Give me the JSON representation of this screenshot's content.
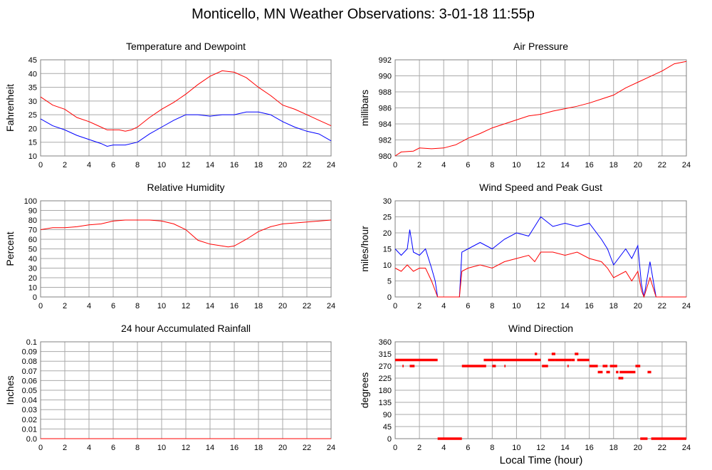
{
  "title": "Monticello, MN Weather Observations: 3-01-18 11:55p",
  "xlabel_shared": "Local Time (hour)",
  "colors": {
    "primary": "#ff0000",
    "secondary": "#0000ff",
    "grid": "#aaaaaa",
    "frame": "#808080"
  },
  "chart_data": [
    {
      "type": "line",
      "title": "Temperature and Dewpoint",
      "ylabel": "Fahrenheit",
      "xlim": [
        0,
        24
      ],
      "ylim": [
        10,
        45
      ],
      "xticks": [
        0,
        2,
        4,
        6,
        8,
        10,
        12,
        14,
        16,
        18,
        20,
        22,
        24
      ],
      "yticks": [
        10,
        15,
        20,
        25,
        30,
        35,
        40,
        45
      ],
      "ytick_labels": [
        "10",
        "15",
        "20",
        "25",
        "30",
        "35",
        "40",
        "45"
      ],
      "series": [
        {
          "color": "#ff0000",
          "x": [
            0,
            1,
            2,
            3,
            4,
            5,
            5.5,
            6,
            6.5,
            7,
            7.5,
            8,
            9,
            10,
            11,
            12,
            13,
            14,
            15,
            16,
            17,
            18,
            19,
            20,
            21,
            22,
            23,
            24
          ],
          "values": [
            31.5,
            28.5,
            27,
            24,
            22.5,
            20.5,
            19.5,
            19.5,
            19.5,
            19,
            19.5,
            20.5,
            24,
            27,
            29.5,
            32.5,
            36,
            39,
            41,
            40.5,
            38.5,
            35,
            32,
            28.5,
            27,
            25,
            23,
            21
          ]
        },
        {
          "color": "#0000ff",
          "x": [
            0,
            1,
            2,
            3,
            4,
            5,
            5.5,
            6,
            7,
            8,
            9,
            10,
            11,
            12,
            13,
            14,
            15,
            16,
            17,
            18,
            19,
            20,
            21,
            22,
            23,
            24
          ],
          "values": [
            23.5,
            21,
            19.5,
            17.5,
            16,
            14.5,
            13.5,
            14,
            14,
            15,
            18,
            20.5,
            23,
            25,
            25,
            24.5,
            25,
            25,
            26,
            26,
            25,
            22.5,
            20.5,
            19,
            18,
            15.5
          ]
        }
      ]
    },
    {
      "type": "line",
      "title": "Air Pressure",
      "ylabel": "millibars",
      "xlim": [
        0,
        24
      ],
      "ylim": [
        980,
        992
      ],
      "xticks": [
        0,
        2,
        4,
        6,
        8,
        10,
        12,
        14,
        16,
        18,
        20,
        22,
        24
      ],
      "yticks": [
        980,
        982,
        984,
        986,
        988,
        990,
        992
      ],
      "ytick_labels": [
        "980",
        "982",
        "984",
        "986",
        "988",
        "990",
        "992"
      ],
      "series": [
        {
          "color": "#ff0000",
          "x": [
            0,
            0.5,
            1.5,
            2,
            3,
            4,
            5,
            6,
            7,
            8,
            9,
            10,
            11,
            12,
            13,
            14,
            15,
            16,
            17,
            18,
            19,
            20,
            21,
            22,
            23,
            24
          ],
          "values": [
            980,
            980.5,
            980.6,
            981,
            980.9,
            981,
            981.4,
            982.2,
            982.8,
            983.5,
            984,
            984.5,
            985,
            985.2,
            985.6,
            985.9,
            986.2,
            986.6,
            987.1,
            987.6,
            988.5,
            989.2,
            989.9,
            990.6,
            991.5,
            991.8
          ]
        }
      ]
    },
    {
      "type": "line",
      "title": "Relative Humidity",
      "ylabel": "Percent",
      "xlim": [
        0,
        24
      ],
      "ylim": [
        0,
        100
      ],
      "xticks": [
        0,
        2,
        4,
        6,
        8,
        10,
        12,
        14,
        16,
        18,
        20,
        22,
        24
      ],
      "yticks": [
        0,
        10,
        20,
        30,
        40,
        50,
        60,
        70,
        80,
        90,
        100
      ],
      "ytick_labels": [
        "0",
        "10",
        "20",
        "30",
        "40",
        "50",
        "60",
        "70",
        "80",
        "90",
        "100"
      ],
      "series": [
        {
          "color": "#ff0000",
          "x": [
            0,
            1,
            2,
            3,
            4,
            5,
            6,
            7,
            8,
            9,
            10,
            11,
            12,
            13,
            14,
            15,
            15.5,
            16,
            17,
            18,
            19,
            20,
            21,
            22,
            23,
            24
          ],
          "values": [
            70,
            72,
            72,
            73,
            75,
            76,
            79,
            80,
            80,
            80,
            79,
            76,
            70,
            59,
            55,
            53,
            52,
            53,
            60,
            68,
            73,
            76,
            77,
            78,
            79,
            80
          ]
        }
      ]
    },
    {
      "type": "line",
      "title": "Wind Speed and Peak Gust",
      "ylabel": "miles/hour",
      "xlim": [
        0,
        24
      ],
      "ylim": [
        0,
        30
      ],
      "xticks": [
        0,
        2,
        4,
        6,
        8,
        10,
        12,
        14,
        16,
        18,
        20,
        22,
        24
      ],
      "yticks": [
        0,
        5,
        10,
        15,
        20,
        25,
        30
      ],
      "ytick_labels": [
        "0",
        "5",
        "10",
        "15",
        "20",
        "25",
        "30"
      ],
      "series": [
        {
          "color": "#0000ff",
          "x": [
            0,
            0.5,
            1,
            1.2,
            1.5,
            2,
            2.5,
            3,
            3.3,
            3.5,
            5.3,
            5.5,
            6,
            7,
            8,
            9,
            10,
            11,
            11.5,
            12,
            13,
            14,
            15,
            16,
            17,
            17.5,
            18,
            19,
            19.5,
            20,
            20.3,
            20.5,
            21,
            21.5,
            24
          ],
          "values": [
            15,
            13,
            15,
            21,
            14,
            13,
            15,
            9,
            5,
            0,
            0,
            14,
            15,
            17,
            15,
            18,
            20,
            19,
            22,
            25,
            22,
            23,
            22,
            23,
            18,
            15,
            10,
            15,
            12,
            16,
            4,
            0,
            11,
            0,
            0
          ]
        },
        {
          "color": "#ff0000",
          "x": [
            0,
            0.5,
            1,
            1.5,
            2,
            2.5,
            3,
            3.3,
            3.5,
            5.3,
            5.5,
            6,
            7,
            8,
            9,
            10,
            11,
            11.5,
            12,
            13,
            14,
            15,
            16,
            17,
            17.5,
            18,
            19,
            19.5,
            20,
            20.3,
            20.5,
            21,
            21.5,
            24
          ],
          "values": [
            9,
            8,
            10,
            8,
            9,
            9,
            5,
            2,
            0,
            0,
            8,
            9,
            10,
            9,
            11,
            12,
            13,
            11,
            14,
            14,
            13,
            14,
            12,
            11,
            9,
            6,
            8,
            5,
            8,
            2,
            0,
            6,
            0,
            0
          ]
        }
      ]
    },
    {
      "type": "line",
      "title": "24 hour Accumulated Rainfall",
      "ylabel": "Inches",
      "xlim": [
        0,
        24
      ],
      "ylim": [
        0,
        0.1
      ],
      "xticks": [
        0,
        2,
        4,
        6,
        8,
        10,
        12,
        14,
        16,
        18,
        20,
        22,
        24
      ],
      "yticks": [
        0,
        0.01,
        0.02,
        0.03,
        0.04,
        0.05,
        0.06,
        0.07,
        0.08,
        0.09,
        0.1
      ],
      "ytick_labels": [
        "0.0",
        "0.01",
        "0.02",
        "0.03",
        "0.04",
        "0.05",
        "0.06",
        "0.07",
        "0.08",
        "0.09",
        "0.1"
      ],
      "series": [
        {
          "color": "#ff0000",
          "x": [
            0,
            24
          ],
          "values": [
            0,
            0
          ]
        }
      ]
    },
    {
      "type": "scatter",
      "title": "Wind Direction",
      "ylabel": "degrees",
      "xlim": [
        0,
        24
      ],
      "ylim": [
        0,
        360
      ],
      "xticks": [
        0,
        2,
        4,
        6,
        8,
        10,
        12,
        14,
        16,
        18,
        20,
        22,
        24
      ],
      "yticks": [
        0,
        45,
        90,
        135,
        180,
        225,
        270,
        315,
        360
      ],
      "ytick_labels": [
        "0",
        "45",
        "90",
        "135",
        "180",
        "225",
        "270",
        "315",
        "360"
      ],
      "segments": [
        {
          "x0": 0,
          "x1": 3.5,
          "value": 292.5
        },
        {
          "x0": 0.6,
          "x1": 0.7,
          "value": 270
        },
        {
          "x0": 1.2,
          "x1": 1.6,
          "value": 270
        },
        {
          "x0": 3.5,
          "x1": 5.5,
          "value": 0
        },
        {
          "x0": 5.5,
          "x1": 7.5,
          "value": 270
        },
        {
          "x0": 7.3,
          "x1": 7.6,
          "value": 292.5
        },
        {
          "x0": 7.6,
          "x1": 11.5,
          "value": 292.5
        },
        {
          "x0": 8,
          "x1": 8.3,
          "value": 270
        },
        {
          "x0": 9,
          "x1": 9.1,
          "value": 270
        },
        {
          "x0": 11.5,
          "x1": 11.7,
          "value": 315
        },
        {
          "x0": 11.5,
          "x1": 12,
          "value": 292.5
        },
        {
          "x0": 12.1,
          "x1": 12.6,
          "value": 270
        },
        {
          "x0": 12.6,
          "x1": 13.2,
          "value": 292.5
        },
        {
          "x0": 12.9,
          "x1": 13.2,
          "value": 315
        },
        {
          "x0": 13.2,
          "x1": 14.5,
          "value": 292.5
        },
        {
          "x0": 14.2,
          "x1": 14.3,
          "value": 270
        },
        {
          "x0": 14.5,
          "x1": 14.8,
          "value": 292.5
        },
        {
          "x0": 14.8,
          "x1": 15.1,
          "value": 315
        },
        {
          "x0": 15,
          "x1": 16,
          "value": 292.5
        },
        {
          "x0": 16,
          "x1": 16.7,
          "value": 270
        },
        {
          "x0": 16.7,
          "x1": 17.1,
          "value": 247.5
        },
        {
          "x0": 17.1,
          "x1": 17.5,
          "value": 270
        },
        {
          "x0": 17.4,
          "x1": 17.7,
          "value": 247.5
        },
        {
          "x0": 17.7,
          "x1": 18.3,
          "value": 270
        },
        {
          "x0": 18.2,
          "x1": 18.4,
          "value": 247.5
        },
        {
          "x0": 18.4,
          "x1": 18.8,
          "value": 225
        },
        {
          "x0": 18.5,
          "x1": 19.8,
          "value": 247.5
        },
        {
          "x0": 19.8,
          "x1": 20.2,
          "value": 270
        },
        {
          "x0": 20.2,
          "x1": 20.8,
          "value": 0
        },
        {
          "x0": 20.8,
          "x1": 21.1,
          "value": 247.5
        },
        {
          "x0": 21.1,
          "x1": 24,
          "value": 0
        }
      ]
    }
  ]
}
